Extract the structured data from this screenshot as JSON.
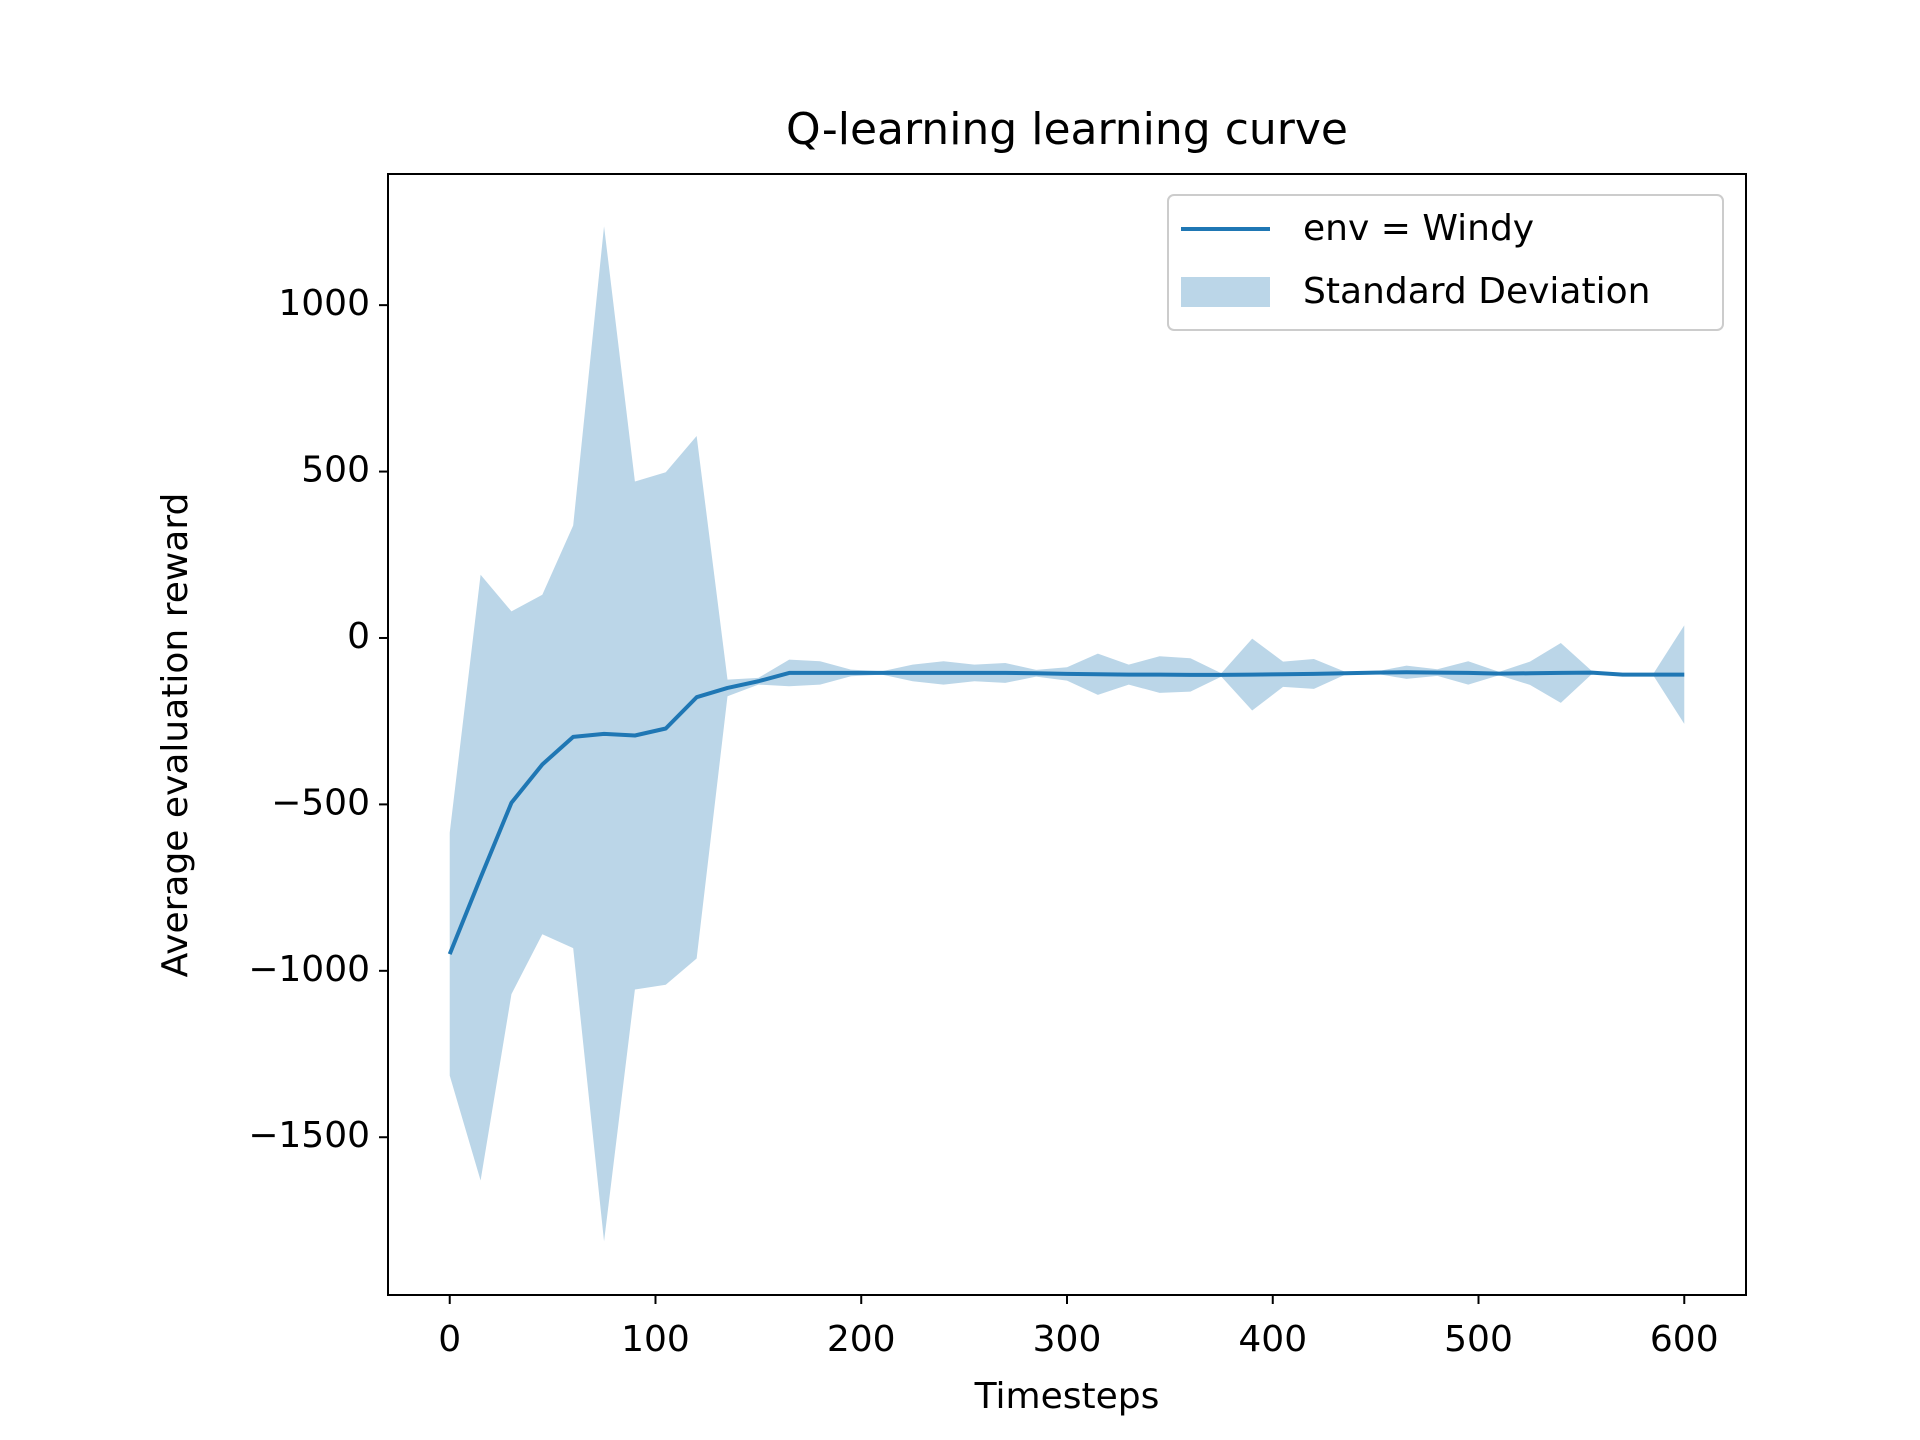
{
  "chart_data": {
    "type": "line",
    "title": "Q-learning learning curve",
    "x_label": "Timesteps",
    "y_label": "Average evaluation reward",
    "x": [
      0,
      15,
      30,
      45,
      60,
      75,
      90,
      105,
      120,
      135,
      150,
      165,
      180,
      195,
      210,
      225,
      240,
      255,
      270,
      285,
      300,
      315,
      330,
      345,
      360,
      375,
      390,
      405,
      420,
      435,
      450,
      465,
      480,
      495,
      510,
      525,
      540,
      555,
      570,
      585,
      600
    ],
    "series": [
      {
        "name": "env = Windy",
        "color": "#1f77b4",
        "values": [
          -950,
          -720,
          -495,
          -380,
          -297,
          -288,
          -293,
          -272,
          -178,
          -150,
          -130,
          -105,
          -105,
          -105,
          -105,
          -105,
          -105,
          -105,
          -105,
          -106,
          -108,
          -109,
          -110,
          -110,
          -111,
          -111,
          -110,
          -109,
          -108,
          -106,
          -104,
          -103,
          -104,
          -105,
          -107,
          -106,
          -105,
          -104,
          -110,
          -110,
          -110
        ]
      },
      {
        "name": "Standard Deviation",
        "color": "#bbd6e8",
        "values": [
          365,
          910,
          575,
          510,
          635,
          1525,
          763,
          770,
          785,
          25,
          10,
          40,
          35,
          10,
          5,
          25,
          35,
          25,
          30,
          10,
          20,
          62,
          30,
          55,
          50,
          5,
          108,
          38,
          45,
          5,
          3,
          20,
          10,
          35,
          5,
          35,
          90,
          5,
          3,
          3,
          148
        ]
      }
    ],
    "xlim": [
      -30,
      630
    ],
    "ylim": [
      -1974,
      1394
    ],
    "xticks": [
      0,
      100,
      200,
      300,
      400,
      500,
      600
    ],
    "yticks": [
      {
        "value": -1500,
        "label": "−1500"
      },
      {
        "value": -1000,
        "label": "−1000"
      },
      {
        "value": -500,
        "label": "−500"
      },
      0,
      500,
      1000
    ],
    "legend": "upper right"
  }
}
